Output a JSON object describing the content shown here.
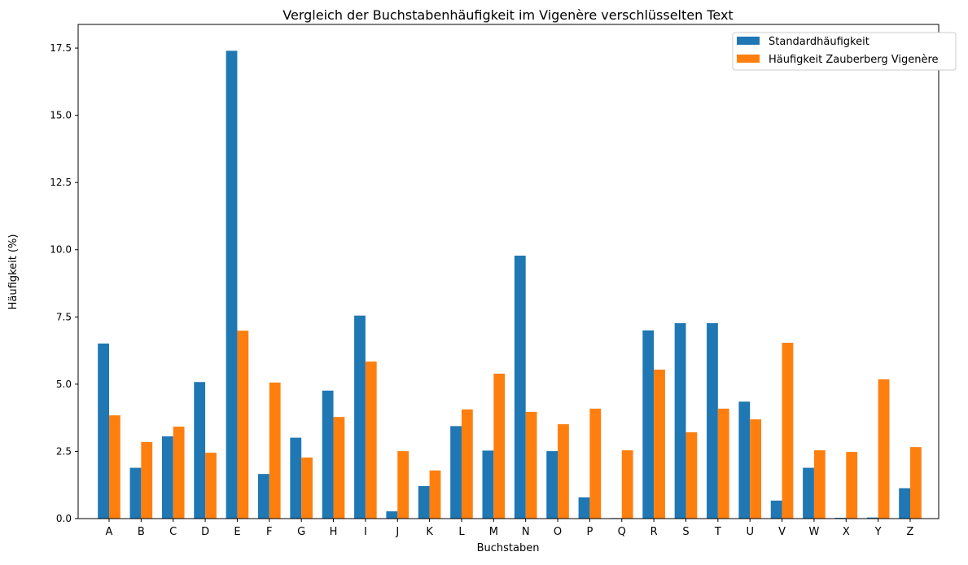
{
  "chart_data": {
    "type": "bar",
    "title": "Vergleich der Buchstabenhäufigkeit im Vigenère verschlüsselten Text",
    "xlabel": "Buchstaben",
    "ylabel": "Häufigkeit (%)",
    "ylim": [
      0,
      18.38
    ],
    "yticks": [
      "0.0",
      "2.5",
      "5.0",
      "7.5",
      "10.0",
      "12.5",
      "15.0",
      "17.5"
    ],
    "grid": false,
    "legend_position": "top-right",
    "categories": [
      "A",
      "B",
      "C",
      "D",
      "E",
      "F",
      "G",
      "H",
      "I",
      "J",
      "K",
      "L",
      "M",
      "N",
      "O",
      "P",
      "Q",
      "R",
      "S",
      "T",
      "U",
      "V",
      "W",
      "X",
      "Y",
      "Z"
    ],
    "series": [
      {
        "name": "Standardhäufigkeit",
        "color": "#1f77b4",
        "values": [
          6.51,
          1.89,
          3.06,
          5.08,
          17.4,
          1.66,
          3.01,
          4.76,
          7.55,
          0.27,
          1.21,
          3.44,
          2.53,
          9.78,
          2.51,
          0.79,
          0.02,
          7.0,
          7.27,
          7.27,
          4.35,
          0.67,
          1.89,
          0.03,
          0.04,
          1.13
        ]
      },
      {
        "name": "Häufigkeit Zauberberg Vigenère",
        "color": "#ff7f0e",
        "values": [
          3.84,
          2.85,
          3.42,
          2.45,
          6.99,
          5.06,
          2.27,
          3.78,
          5.84,
          2.51,
          1.79,
          4.06,
          5.39,
          3.97,
          3.51,
          4.09,
          2.54,
          5.54,
          3.21,
          4.09,
          3.69,
          6.54,
          2.54,
          2.48,
          5.18,
          2.66
        ]
      }
    ]
  }
}
